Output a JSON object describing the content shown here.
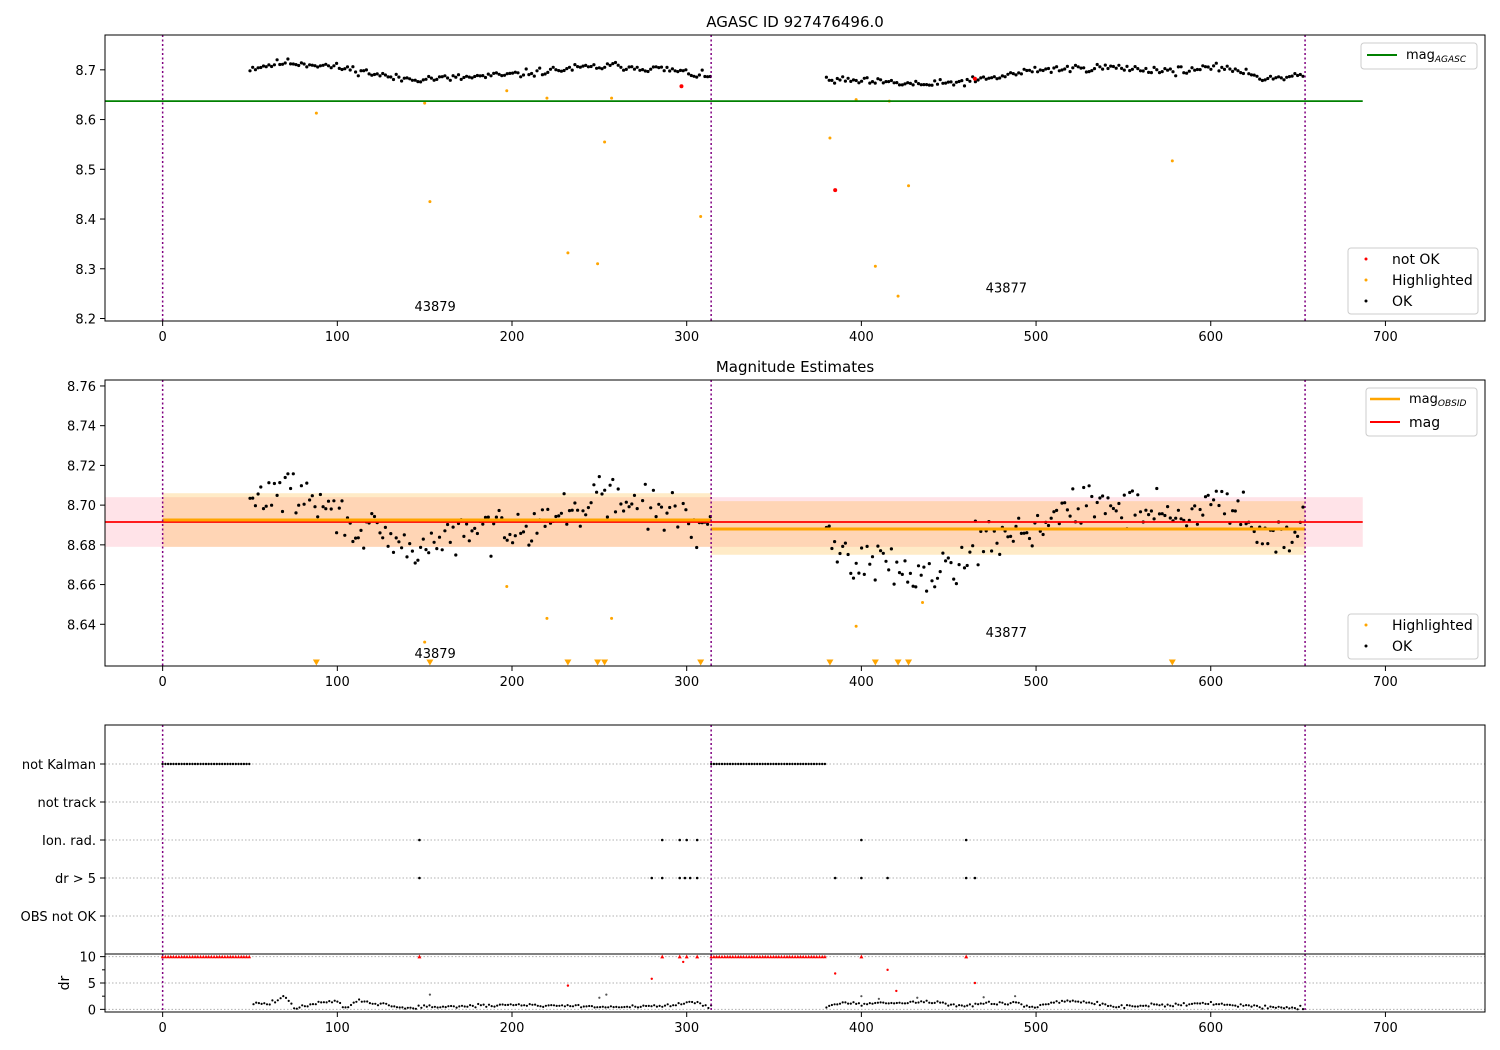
{
  "chart_data": [
    {
      "type": "scatter",
      "title": "AGASC ID 927476496.0",
      "xlim": [
        -33,
        757
      ],
      "ylim": [
        8.195,
        8.77
      ],
      "xticks": [
        0,
        100,
        200,
        300,
        400,
        500,
        600,
        700
      ],
      "yticks": [
        8.2,
        8.3,
        8.4,
        8.5,
        8.6,
        8.7
      ],
      "grid": false,
      "obsid_boundaries": [
        0,
        314,
        654
      ],
      "obsid_labels": [
        {
          "text": "43879",
          "x": 156,
          "y": 8.225
        },
        {
          "text": "43877",
          "x": 483,
          "y": 8.262
        }
      ],
      "hlines": [
        {
          "name": "mag_AGASC",
          "label": "mag",
          "sub": "AGASC",
          "y": 8.637,
          "x": [
            -33,
            687
          ],
          "color": "#008000"
        }
      ],
      "segments": [
        {
          "x": [
            50,
            314
          ],
          "trend": [
            [
              50,
              8.703
            ],
            [
              70,
              8.715
            ],
            [
              90,
              8.71
            ],
            [
              110,
              8.7
            ],
            [
              135,
              8.682
            ],
            [
              165,
              8.683
            ],
            [
              200,
              8.69
            ],
            [
              235,
              8.703
            ],
            [
              260,
              8.708
            ],
            [
              290,
              8.7
            ],
            [
              314,
              8.685
            ]
          ],
          "noise": 0.006
        },
        {
          "x": [
            380,
            654
          ],
          "trend": [
            [
              380,
              8.68
            ],
            [
              420,
              8.673
            ],
            [
              440,
              8.67
            ],
            [
              470,
              8.68
            ],
            [
              500,
              8.7
            ],
            [
              540,
              8.705
            ],
            [
              580,
              8.698
            ],
            [
              610,
              8.705
            ],
            [
              630,
              8.683
            ],
            [
              654,
              8.69
            ]
          ],
          "noise": 0.006
        }
      ],
      "highlighted": [
        [
          88,
          8.613
        ],
        [
          150,
          8.633
        ],
        [
          153,
          8.435
        ],
        [
          197,
          8.658
        ],
        [
          220,
          8.643
        ],
        [
          232,
          8.332
        ],
        [
          249,
          8.31
        ],
        [
          253,
          8.555
        ],
        [
          257,
          8.643
        ],
        [
          308,
          8.405
        ],
        [
          382,
          8.563
        ],
        [
          397,
          8.64
        ],
        [
          408,
          8.305
        ],
        [
          416,
          8.637
        ],
        [
          421,
          8.245
        ],
        [
          427,
          8.467
        ],
        [
          578,
          8.517
        ]
      ],
      "not_ok": [
        [
          297,
          8.667
        ],
        [
          385,
          8.458
        ],
        [
          465,
          8.682
        ]
      ],
      "legends": [
        {
          "position": "top-right",
          "entries": [
            {
              "label": "mag",
              "sub": "AGASC",
              "color": "#008000",
              "kind": "line"
            }
          ]
        },
        {
          "position": "bottom-right",
          "entries": [
            {
              "label": "not OK",
              "color": "#ff0000",
              "kind": "dot"
            },
            {
              "label": "Highlighted",
              "color": "#ffa500",
              "kind": "dot"
            },
            {
              "label": "OK",
              "color": "#000000",
              "kind": "dot"
            }
          ]
        }
      ]
    },
    {
      "type": "scatter",
      "title": "Magnitude Estimates",
      "xlim": [
        -33,
        757
      ],
      "ylim": [
        8.619,
        8.763
      ],
      "xticks": [
        0,
        100,
        200,
        300,
        400,
        500,
        600,
        700
      ],
      "yticks": [
        8.64,
        8.66,
        8.68,
        8.7,
        8.72,
        8.74,
        8.76
      ],
      "grid": false,
      "obsid_boundaries": [
        0,
        314,
        654
      ],
      "obsid_labels": [
        {
          "text": "43879",
          "x": 156,
          "y": 8.6255
        },
        {
          "text": "43877",
          "x": 483,
          "y": 8.636
        }
      ],
      "bands": [
        {
          "x": [
            -33,
            687
          ],
          "y": [
            8.679,
            8.704
          ],
          "color": "#ffc0cb",
          "opacity": 0.45
        },
        {
          "x": [
            0,
            314
          ],
          "y": [
            8.679,
            8.706
          ],
          "color": "#ffa500",
          "opacity": 0.22
        },
        {
          "x": [
            314,
            654
          ],
          "y": [
            8.675,
            8.702
          ],
          "color": "#ffa500",
          "opacity": 0.22
        }
      ],
      "hlines": [
        {
          "name": "mag",
          "label": "mag",
          "y": 8.6915,
          "x": [
            -33,
            687
          ],
          "color": "#ff0000"
        },
        {
          "name": "mag_OBSID_1",
          "label": "mag",
          "sub": "OBSID",
          "y": 8.6925,
          "x": [
            0,
            314
          ],
          "color": "#ffa500"
        },
        {
          "name": "mag_OBSID_2",
          "label": "mag",
          "sub": "OBSID",
          "y": 8.688,
          "x": [
            314,
            654
          ],
          "color": "#ffa500"
        }
      ],
      "segments": [
        {
          "x": [
            50,
            314
          ],
          "trend": [
            [
              50,
              8.7
            ],
            [
              65,
              8.708
            ],
            [
              80,
              8.705
            ],
            [
              100,
              8.695
            ],
            [
              120,
              8.685
            ],
            [
              140,
              8.677
            ],
            [
              170,
              8.685
            ],
            [
              200,
              8.69
            ],
            [
              230,
              8.695
            ],
            [
              250,
              8.705
            ],
            [
              280,
              8.698
            ],
            [
              300,
              8.695
            ],
            [
              314,
              8.685
            ]
          ],
          "noise": 0.008
        },
        {
          "x": [
            380,
            654
          ],
          "trend": [
            [
              380,
              8.68
            ],
            [
              400,
              8.672
            ],
            [
              420,
              8.67
            ],
            [
              440,
              8.665
            ],
            [
              470,
              8.682
            ],
            [
              500,
              8.69
            ],
            [
              530,
              8.7
            ],
            [
              560,
              8.7
            ],
            [
              590,
              8.693
            ],
            [
              610,
              8.705
            ],
            [
              630,
              8.685
            ],
            [
              654,
              8.69
            ]
          ],
          "noise": 0.008
        }
      ],
      "highlighted": [
        [
          150,
          8.631
        ],
        [
          197,
          8.659
        ],
        [
          220,
          8.643
        ],
        [
          257,
          8.643
        ],
        [
          397,
          8.639
        ],
        [
          435,
          8.651
        ]
      ],
      "off_scale_markers": [
        88,
        153,
        232,
        249,
        253,
        308,
        382,
        408,
        421,
        427,
        578
      ],
      "legends": [
        {
          "position": "top-right",
          "entries": [
            {
              "label": "mag",
              "sub": "OBSID",
              "color": "#ffa500",
              "kind": "line"
            },
            {
              "label": "mag",
              "color": "#ff0000",
              "kind": "line"
            }
          ]
        },
        {
          "position": "bottom-right",
          "entries": [
            {
              "label": "Highlighted",
              "color": "#ffa500",
              "kind": "dot"
            },
            {
              "label": "OK",
              "color": "#000000",
              "kind": "dot"
            }
          ]
        }
      ]
    },
    {
      "type": "scatter",
      "xlim": [
        -33,
        757
      ],
      "xticks": [
        0,
        100,
        200,
        300,
        400,
        500,
        600,
        700
      ],
      "obsid_boundaries": [
        0,
        314,
        654
      ],
      "flag_rows": [
        "not Kalman",
        "not track",
        "Ion. rad.",
        "dr > 5",
        "OBS not OK"
      ],
      "flag_points": {
        "not Kalman": {
          "ranges": [
            [
              0,
              50
            ],
            [
              314,
              380
            ]
          ]
        },
        "not track": {
          "ranges": []
        },
        "Ion. rad.": {
          "x": [
            147,
            286,
            296,
            300,
            306,
            400,
            460
          ]
        },
        "dr > 5": {
          "x": [
            147,
            280,
            286,
            296,
            299,
            302,
            306,
            385,
            400,
            415,
            460,
            465
          ]
        },
        "OBS not OK": {
          "x": []
        }
      }
    },
    {
      "type": "scatter",
      "ylabel": "dr",
      "xlim": [
        -33,
        757
      ],
      "ylim": [
        -0.5,
        10.5
      ],
      "yticks": [
        0,
        5,
        10
      ],
      "xticks": [
        0,
        100,
        200,
        300,
        400,
        500,
        600,
        700
      ],
      "grid": true,
      "obsid_boundaries": [
        0,
        314,
        654
      ],
      "clipped_ranges": [
        [
          0,
          50
        ],
        [
          314,
          380
        ]
      ],
      "clipped_x": [
        147,
        286,
        296,
        300,
        306,
        400,
        460
      ],
      "red_points": [
        [
          232,
          4.5
        ],
        [
          280,
          5.8
        ],
        [
          298,
          9.0
        ],
        [
          385,
          6.8
        ],
        [
          415,
          7.5
        ],
        [
          420,
          3.5
        ],
        [
          465,
          5.0
        ]
      ],
      "gray_points": [
        [
          153,
          2.8
        ],
        [
          250,
          2.2
        ],
        [
          254,
          2.8
        ],
        [
          400,
          2.5
        ],
        [
          410,
          2.0
        ],
        [
          432,
          2.2
        ],
        [
          470,
          2.3
        ],
        [
          488,
          2.5
        ]
      ],
      "segments": [
        {
          "x": [
            52,
            314
          ],
          "trend": [
            [
              52,
              1.2
            ],
            [
              60,
              1.0
            ],
            [
              70,
              2.3
            ],
            [
              75,
              0.3
            ],
            [
              90,
              1.2
            ],
            [
              100,
              1.5
            ],
            [
              105,
              0.3
            ],
            [
              112,
              1.8
            ],
            [
              125,
              1.0
            ],
            [
              140,
              0.2
            ],
            [
              150,
              0.5
            ],
            [
              180,
              0.6
            ],
            [
              200,
              0.9
            ],
            [
              230,
              0.7
            ],
            [
              260,
              0.4
            ],
            [
              290,
              0.8
            ],
            [
              305,
              1.3
            ],
            [
              314,
              0.5
            ]
          ],
          "noise": 0.25
        },
        {
          "x": [
            380,
            654
          ],
          "trend": [
            [
              380,
              0.5
            ],
            [
              390,
              1.5
            ],
            [
              400,
              1.0
            ],
            [
              420,
              1.2
            ],
            [
              440,
              1.5
            ],
            [
              455,
              0.6
            ],
            [
              470,
              1.2
            ],
            [
              490,
              1.0
            ],
            [
              500,
              0.5
            ],
            [
              515,
              1.7
            ],
            [
              530,
              1.3
            ],
            [
              545,
              0.6
            ],
            [
              570,
              0.8
            ],
            [
              600,
              1.1
            ],
            [
              630,
              0.5
            ],
            [
              654,
              0.3
            ]
          ],
          "noise": 0.25
        }
      ]
    }
  ]
}
